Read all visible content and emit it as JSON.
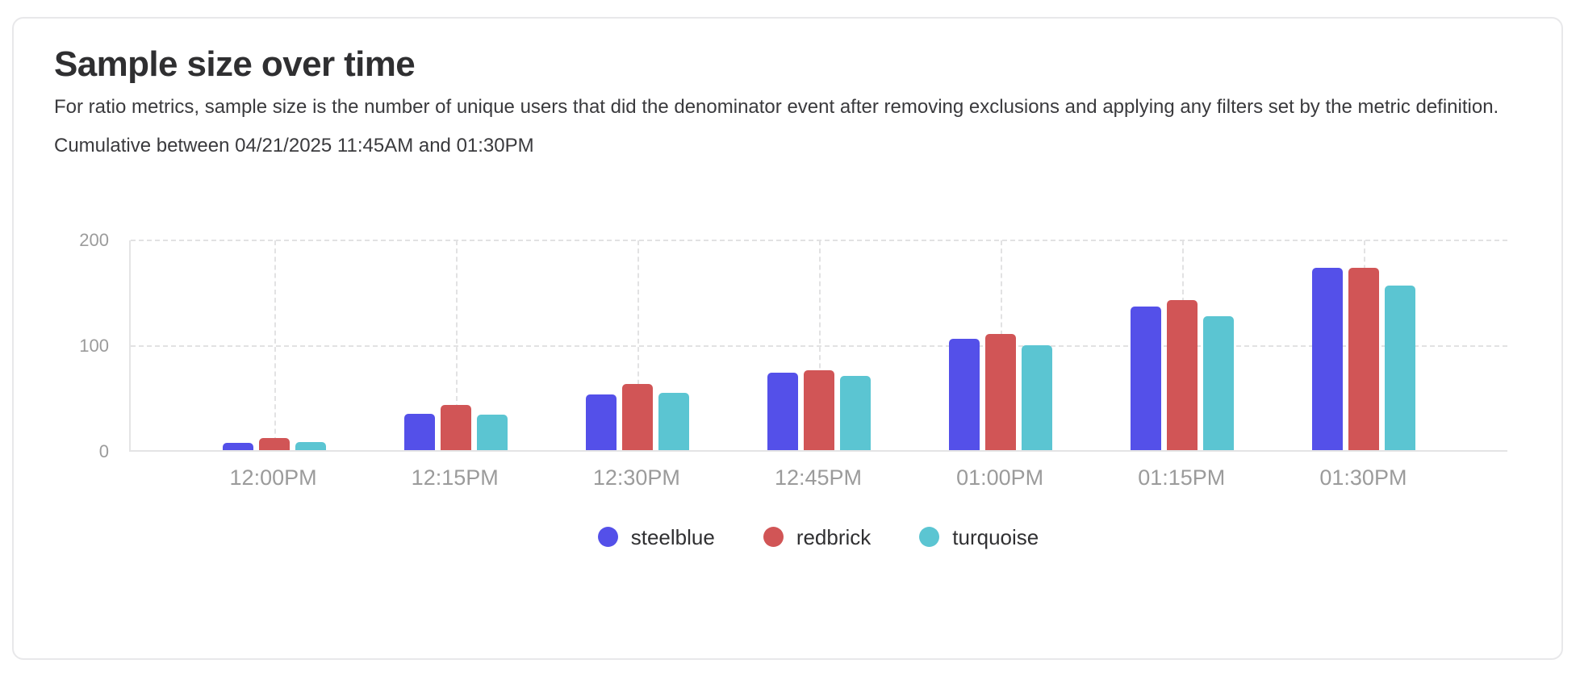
{
  "card": {
    "title": "Sample size over time",
    "description": "For ratio metrics, sample size is the number of unique users that did the denominator event after removing exclusions and applying any filters set by the metric definition.",
    "period_label": "Cumulative between 04/21/2025 11:45AM and 01:30PM"
  },
  "chart_data": {
    "type": "bar",
    "title": "Sample size over time",
    "categories": [
      "12:00PM",
      "12:15PM",
      "12:30PM",
      "12:45PM",
      "01:00PM",
      "01:15PM",
      "01:30PM"
    ],
    "series": [
      {
        "name": "steelblue",
        "color": "#5450E9",
        "values": [
          7,
          35,
          53,
          74,
          106,
          137,
          174
        ]
      },
      {
        "name": "redbrick",
        "color": "#D15556",
        "values": [
          12,
          43,
          63,
          76,
          111,
          143,
          174
        ]
      },
      {
        "name": "turquoise",
        "color": "#5BC5D2",
        "values": [
          8,
          34,
          55,
          71,
          100,
          128,
          157
        ]
      }
    ],
    "xlabel": "",
    "ylabel": "",
    "ylim": [
      0,
      200
    ],
    "yticks": [
      0,
      100,
      200
    ],
    "grid": "dashed",
    "legend_position": "bottom",
    "axis_label_color": "#9b9b9b",
    "gridline_color": "#e2e2e3"
  }
}
